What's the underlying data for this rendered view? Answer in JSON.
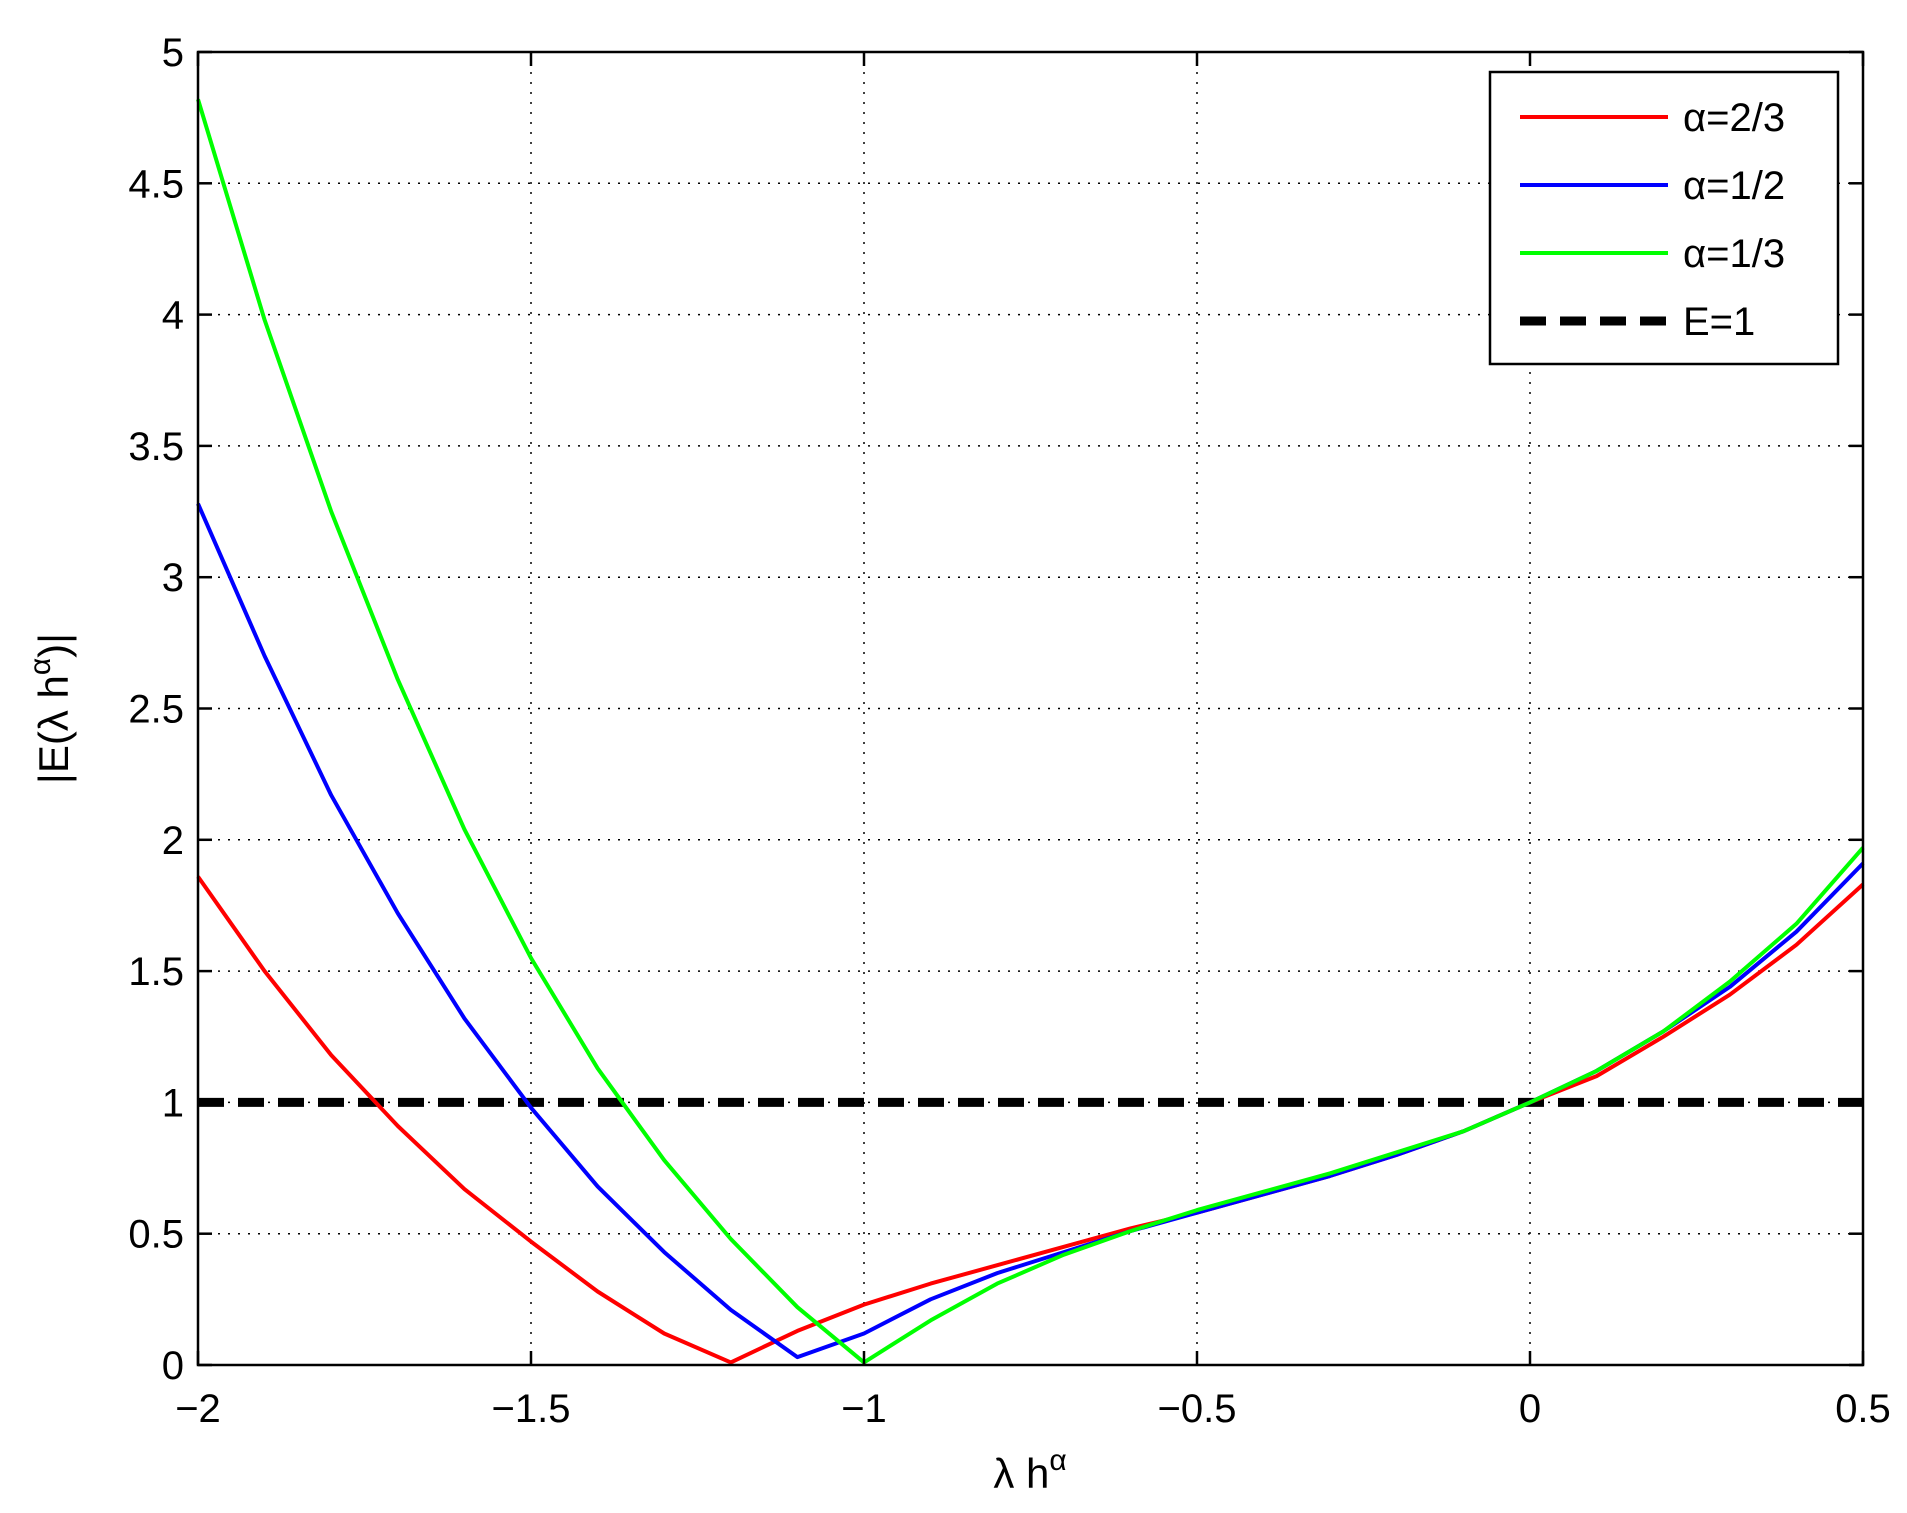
{
  "chart_data": {
    "type": "line",
    "xlabel": {
      "main": "λ h",
      "sup": "α"
    },
    "ylabel": {
      "pre": "|E(λ h",
      "sup": "α",
      "post": ")|"
    },
    "xlim": [
      -2,
      0.5
    ],
    "ylim": [
      0,
      5
    ],
    "xticks": [
      -2,
      -1.5,
      -1,
      -0.5,
      0,
      0.5
    ],
    "xtick_labels": [
      "−2",
      "−1.5",
      "−1",
      "−0.5",
      "0",
      "0.5"
    ],
    "yticks": [
      0,
      0.5,
      1,
      1.5,
      2,
      2.5,
      3,
      3.5,
      4,
      4.5,
      5
    ],
    "ytick_labels": [
      "0",
      "0.5",
      "1",
      "1.5",
      "2",
      "2.5",
      "3",
      "3.5",
      "4",
      "4.5",
      "5"
    ],
    "grid": true,
    "legend_position": "top-right",
    "x": [
      -2.0,
      -1.9,
      -1.8,
      -1.7,
      -1.6,
      -1.5,
      -1.4,
      -1.3,
      -1.2,
      -1.1,
      -1.0,
      -0.9,
      -0.8,
      -0.7,
      -0.6,
      -0.5,
      -0.4,
      -0.3,
      -0.2,
      -0.1,
      0.0,
      0.1,
      0.2,
      0.3,
      0.4,
      0.5
    ],
    "series": [
      {
        "name": "α=2/3",
        "color": "#ff0000",
        "style": "solid",
        "values": [
          1.86,
          1.5,
          1.18,
          0.91,
          0.67,
          0.47,
          0.28,
          0.12,
          0.01,
          0.13,
          0.23,
          0.31,
          0.38,
          0.45,
          0.52,
          0.58,
          0.65,
          0.72,
          0.8,
          0.89,
          1.0,
          1.1,
          1.25,
          1.41,
          1.6,
          1.83
        ]
      },
      {
        "name": "α=1/2",
        "color": "#0000ff",
        "style": "solid",
        "values": [
          3.28,
          2.7,
          2.17,
          1.72,
          1.32,
          0.98,
          0.68,
          0.43,
          0.21,
          0.03,
          0.12,
          0.25,
          0.35,
          0.43,
          0.51,
          0.58,
          0.65,
          0.72,
          0.8,
          0.89,
          1.0,
          1.12,
          1.27,
          1.44,
          1.65,
          1.91
        ]
      },
      {
        "name": "α=1/3",
        "color": "#00ff00",
        "style": "solid",
        "values": [
          4.82,
          3.98,
          3.25,
          2.61,
          2.04,
          1.55,
          1.13,
          0.78,
          0.48,
          0.22,
          0.01,
          0.17,
          0.31,
          0.42,
          0.51,
          0.59,
          0.66,
          0.73,
          0.81,
          0.89,
          1.0,
          1.12,
          1.27,
          1.46,
          1.68,
          1.97
        ]
      },
      {
        "name": "E=1",
        "color": "#000000",
        "style": "dashed",
        "constant": 1
      }
    ]
  }
}
